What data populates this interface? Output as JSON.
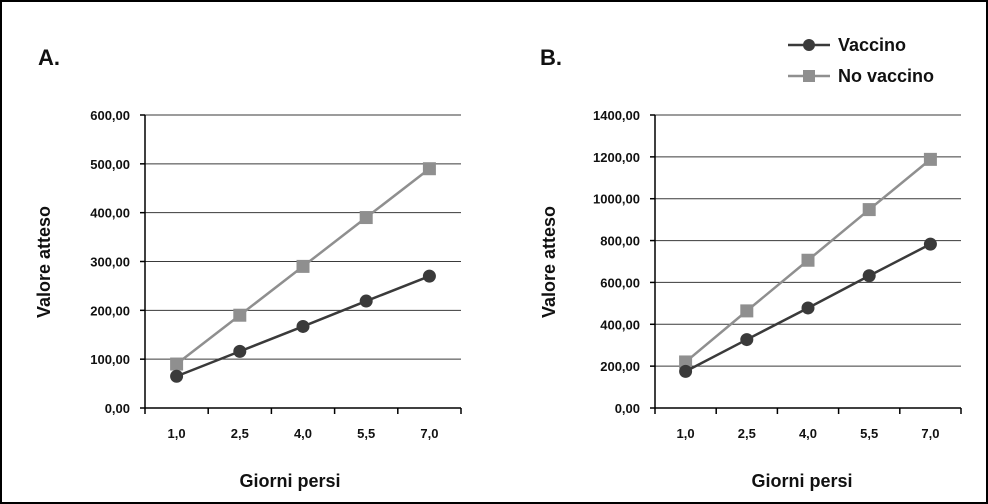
{
  "colors": {
    "vaccino": "#3a3a3a",
    "no_vaccino": "#8f8f8f",
    "grid": "#3a3a3a",
    "frame": "#000000"
  },
  "legend": {
    "items": [
      {
        "label": "Vaccino",
        "marker": "circle",
        "color": "#3a3a3a"
      },
      {
        "label": "No vaccino",
        "marker": "square",
        "color": "#8f8f8f"
      }
    ],
    "placement": "top-right"
  },
  "chart_data": [
    {
      "type": "line",
      "panel_label": "A.",
      "xlabel": "Giorni persi",
      "ylabel": "Valore atteso",
      "categories": [
        "1,0",
        "2,5",
        "4,0",
        "5,5",
        "7,0"
      ],
      "ylim": [
        0,
        600
      ],
      "yticks": [
        0,
        100,
        200,
        300,
        400,
        500,
        600
      ],
      "ytick_labels": [
        "0,00",
        "100,00",
        "200,00",
        "300,00",
        "400,00",
        "500,00",
        "600,00"
      ],
      "grid": true,
      "series": [
        {
          "name": "Vaccino",
          "values": [
            65,
            116,
            167,
            219,
            270
          ]
        },
        {
          "name": "No vaccino",
          "values": [
            90,
            190,
            290,
            390,
            490
          ]
        }
      ]
    },
    {
      "type": "line",
      "panel_label": "B.",
      "xlabel": "Giorni persi",
      "ylabel": "Valore atteso",
      "categories": [
        "1,0",
        "2,5",
        "4,0",
        "5,5",
        "7,0"
      ],
      "ylim": [
        0,
        1400
      ],
      "yticks": [
        0,
        200,
        400,
        600,
        800,
        1000,
        1200,
        1400
      ],
      "ytick_labels": [
        "0,00",
        "200,00",
        "400,00",
        "600,00",
        "800,00",
        "1000,00",
        "1200,00",
        "1400,00"
      ],
      "grid": true,
      "series": [
        {
          "name": "Vaccino",
          "values": [
            175,
            327,
            478,
            632,
            783
          ]
        },
        {
          "name": "No vaccino",
          "values": [
            220,
            464,
            706,
            948,
            1188
          ]
        }
      ]
    }
  ]
}
